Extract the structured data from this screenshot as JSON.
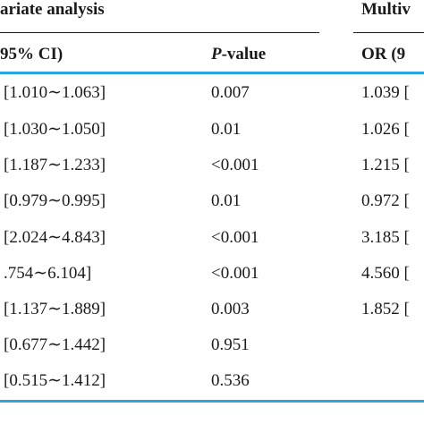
{
  "colors": {
    "accent": "#2aa6dc",
    "text": "#1a1a1a"
  },
  "header": {
    "group_left": "ariate analysis",
    "group_right": "Multiv",
    "col_ci": "95% CI)",
    "col_p_italic": "P",
    "col_p_rest": "-value",
    "col_or": "OR (9"
  },
  "rows": [
    {
      "ci": "[1.010∼1.063]",
      "p": "0.007",
      "or": "1.039 ["
    },
    {
      "ci": "[1.030∼1.050]",
      "p": "0.01",
      "or": "1.026 ["
    },
    {
      "ci": "[1.187∼1.233]",
      "p": "<0.001",
      "or": "1.215 ["
    },
    {
      "ci": "[0.979∼0.995]",
      "p": "0.01",
      "or": "0.972 ["
    },
    {
      "ci": "[2.024∼4.843]",
      "p": "<0.001",
      "or": "3.185 ["
    },
    {
      "ci": ".754∼6.104]",
      "p": "<0.001",
      "or": "4.560 ["
    },
    {
      "ci": "[1.137∼1.889]",
      "p": "0.003",
      "or": "1.852 ["
    },
    {
      "ci": "[0.677∼1.442]",
      "p": "0.951",
      "or": ""
    },
    {
      "ci": "[0.515∼1.412]",
      "p": "0.536",
      "or": ""
    }
  ]
}
